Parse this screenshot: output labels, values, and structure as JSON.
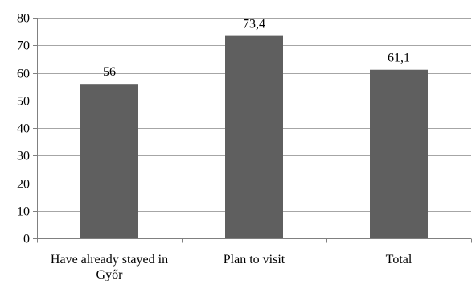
{
  "chart_data": {
    "type": "bar",
    "categories": [
      [
        "Have already stayed in",
        "Győr"
      ],
      [
        "Plan to visit"
      ],
      [
        "Total"
      ]
    ],
    "values": [
      56,
      73.4,
      61.1
    ],
    "data_labels": [
      "56",
      "73,4",
      "61,1"
    ],
    "ylim": [
      0,
      80
    ],
    "y_ticks": [
      0,
      10,
      20,
      30,
      40,
      50,
      60,
      70,
      80
    ],
    "grid": true,
    "legend": "none",
    "bar_color": "#5f5f5f",
    "grid_color": "#a6a6a6",
    "axis_color": "#808080"
  }
}
